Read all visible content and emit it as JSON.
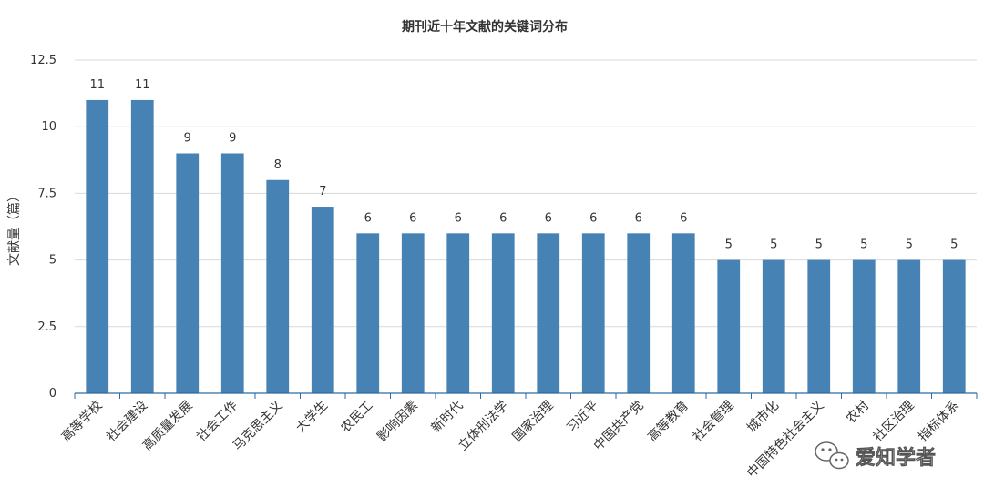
{
  "chart_data": {
    "type": "bar",
    "title": "期刊近十年文献的关键词分布",
    "ylabel": "文献量（篇）",
    "xlabel": "",
    "ylim": [
      0,
      12.5
    ],
    "yticks": [
      "0",
      "2.5",
      "5",
      "7.5",
      "10",
      "12.5"
    ],
    "grid": true,
    "bar_color": "#4682b4",
    "categories": [
      "高等学校",
      "社会建设",
      "高质量发展",
      "社会工作",
      "马克思主义",
      "大学生",
      "农民工",
      "影响因素",
      "新时代",
      "立体刑法学",
      "国家治理",
      "习近平",
      "中国共产党",
      "高等教育",
      "社会管理",
      "城市化",
      "中国特色社会主义",
      "农村",
      "社区治理",
      "指标体系"
    ],
    "values": [
      11,
      11,
      9,
      9,
      8,
      7,
      6,
      6,
      6,
      6,
      6,
      6,
      6,
      6,
      5,
      5,
      5,
      5,
      5,
      5
    ],
    "data_labels": [
      "11",
      "11",
      "9",
      "9",
      "8",
      "7",
      "6",
      "6",
      "6",
      "6",
      "6",
      "6",
      "6",
      "6",
      "5",
      "5",
      "5",
      "5",
      "5",
      "5"
    ]
  },
  "watermark": {
    "text": "爱知学者",
    "icon": "wechat-icon"
  }
}
